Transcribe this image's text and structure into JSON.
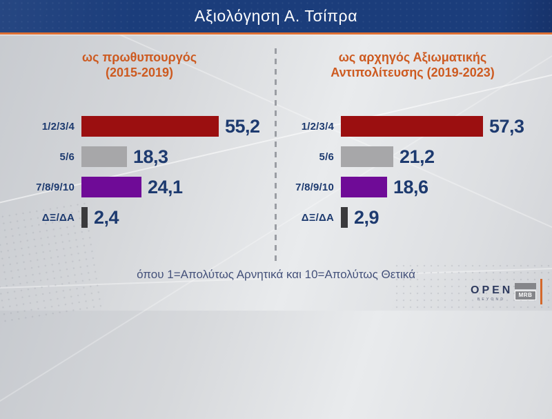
{
  "title": "Αξιολόγηση Α. Τσίπρα",
  "footnote": "όπου 1=Απολύτως Αρνητικά και 10=Απολύτως Θετικά",
  "colors": {
    "title_bar": "#1b3d7b",
    "accent_orange": "#dd7034",
    "panel_title_orange": "#cd5a20",
    "navy_text": "#1d3a6f",
    "bar_red": "#9b0f10",
    "bar_gray": "#a7a7a9",
    "bar_purple": "#6f0b97",
    "bar_dark": "#3a3a3c"
  },
  "logos": {
    "open": "OPEN",
    "open_sub": "BEYOND",
    "mrb": "MRB"
  },
  "chart_data": [
    {
      "type": "bar",
      "orientation": "horizontal",
      "title": "ως πρωθυπουργός (2015-2019)",
      "title_lines": [
        "ως πρωθυπουργός",
        "(2015-2019)"
      ],
      "categories": [
        "1/2/3/4",
        "5/6",
        "7/8/9/10",
        "ΔΞ/ΔΑ"
      ],
      "values": [
        55.2,
        18.3,
        24.1,
        2.4
      ],
      "value_labels": [
        "55,2",
        "18,3",
        "24,1",
        "2,4"
      ],
      "bar_colors": [
        "#9b0f10",
        "#a7a7a9",
        "#6f0b97",
        "#3a3a3c"
      ],
      "xlim": [
        0,
        60
      ],
      "grid": false,
      "legend": false
    },
    {
      "type": "bar",
      "orientation": "horizontal",
      "title": "ως αρχηγός Αξιωματικής Αντιπολίτευσης (2019-2023)",
      "title_lines": [
        "ως αρχηγός Αξιωματικής",
        "Αντιπολίτευσης (2019-2023)"
      ],
      "categories": [
        "1/2/3/4",
        "5/6",
        "7/8/9/10",
        "ΔΞ/ΔΑ"
      ],
      "values": [
        57.3,
        21.2,
        18.6,
        2.9
      ],
      "value_labels": [
        "57,3",
        "21,2",
        "18,6",
        "2,9"
      ],
      "bar_colors": [
        "#9b0f10",
        "#a7a7a9",
        "#6f0b97",
        "#3a3a3c"
      ],
      "xlim": [
        0,
        60
      ],
      "grid": false,
      "legend": false
    }
  ]
}
